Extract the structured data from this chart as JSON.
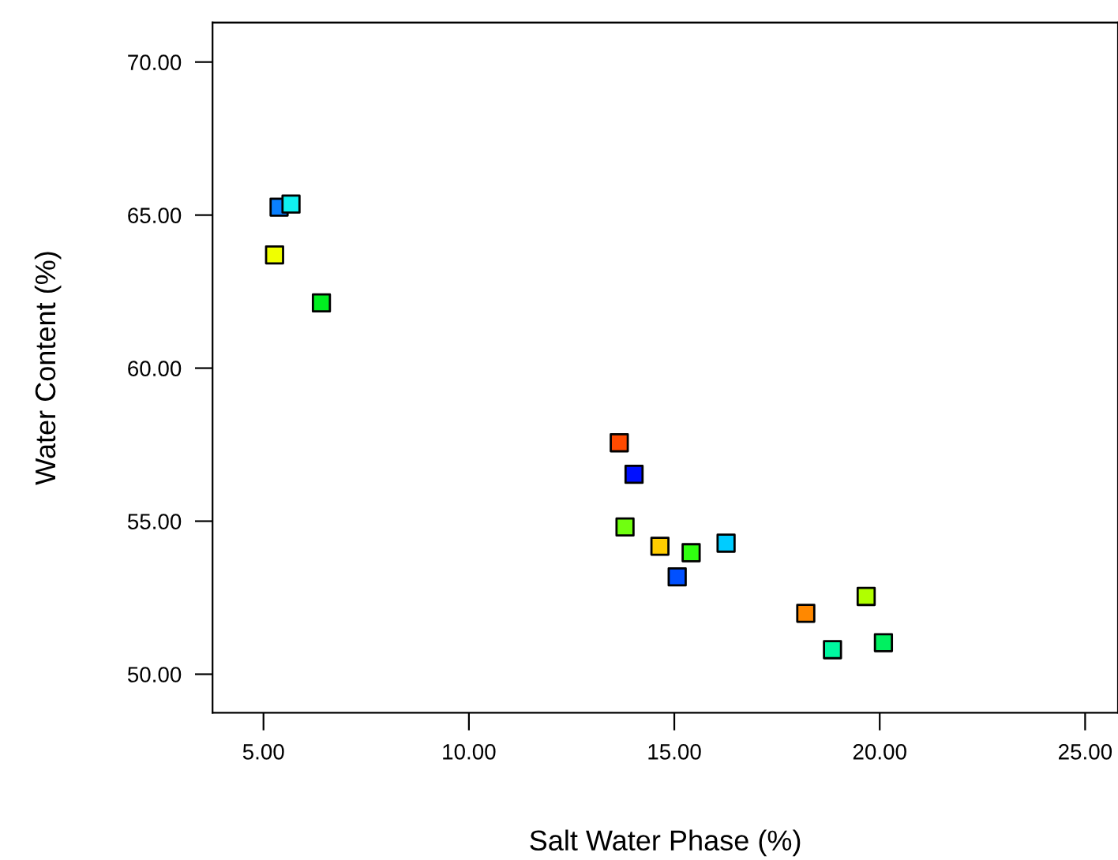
{
  "chart_data": {
    "type": "scatter",
    "xlabel": "Salt Water Phase (%)",
    "ylabel": "Water Content (%)",
    "x": [
      5.38,
      5.67,
      5.27,
      6.41,
      13.66,
      14.02,
      13.8,
      14.65,
      15.41,
      16.26,
      15.07,
      19.67,
      18.2,
      18.85,
      20.09
    ],
    "values": [
      65.26,
      65.36,
      63.7,
      62.13,
      57.56,
      56.53,
      54.81,
      54.18,
      53.97,
      54.28,
      53.18,
      52.54,
      51.99,
      50.8,
      51.03
    ],
    "colors": [
      "#0a80ff",
      "#10f0f0",
      "#f0ff00",
      "#00ee20",
      "#ff4a00",
      "#0010ff",
      "#70ff10",
      "#ffcc00",
      "#30ff10",
      "#00ccff",
      "#0050ff",
      "#b0ff00",
      "#ff8800",
      "#00f8a0",
      "#00f060"
    ],
    "marker": "square",
    "grid": false,
    "xlim": [
      3.76,
      25.8
    ],
    "ylim": [
      48.74,
      71.29
    ],
    "xticks": [
      {
        "value": 5,
        "label": "5.00"
      },
      {
        "value": 10,
        "label": "10.00"
      },
      {
        "value": 15,
        "label": "15.00"
      },
      {
        "value": 20,
        "label": "20.00"
      },
      {
        "value": 25,
        "label": "25.00"
      }
    ],
    "yticks": [
      {
        "value": 50,
        "label": "50.00"
      },
      {
        "value": 55,
        "label": "55.00"
      },
      {
        "value": 60,
        "label": "60.00"
      },
      {
        "value": 65,
        "label": "65.00"
      },
      {
        "value": 70,
        "label": "70.00"
      }
    ]
  }
}
